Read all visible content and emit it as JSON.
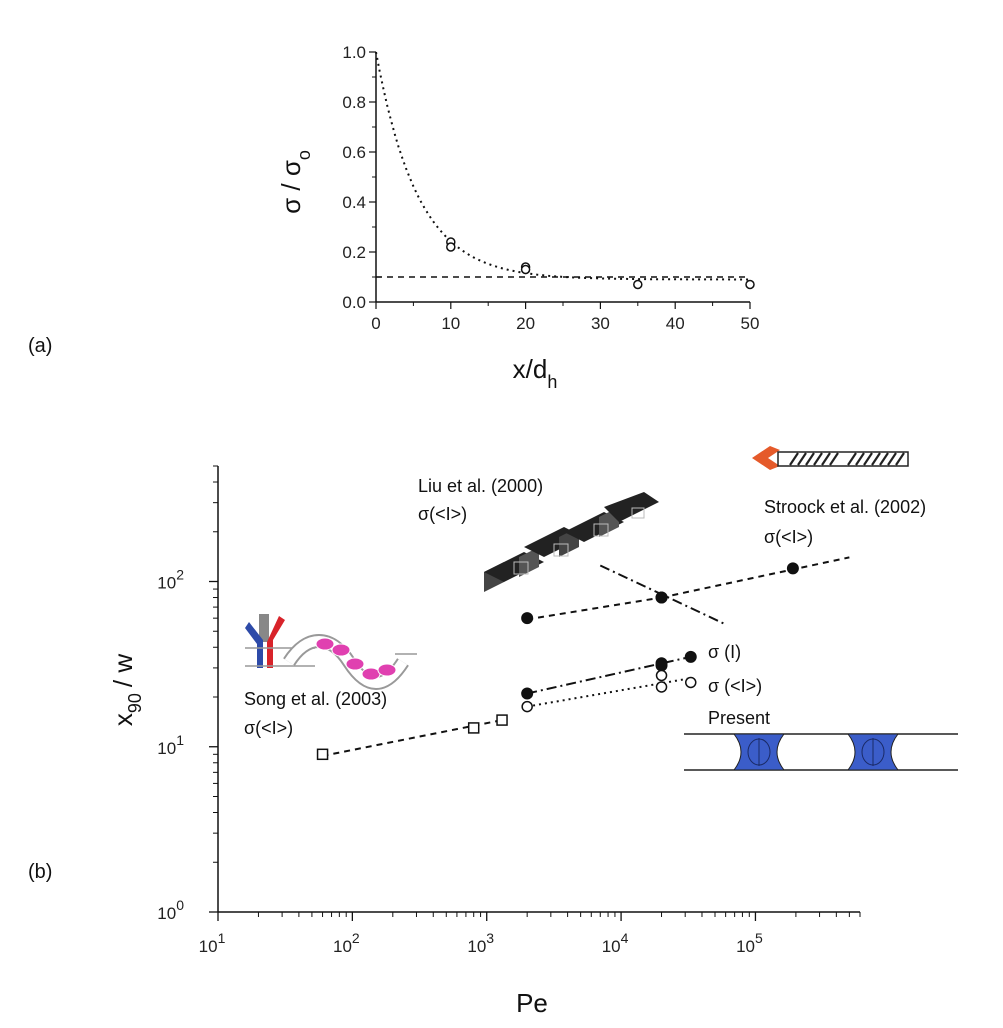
{
  "chart_data": [
    {
      "type": "scatter",
      "panel_label": "(a)",
      "xlabel": "x/d",
      "xlabel_sub": "h",
      "ylabel": "σ / σ",
      "ylabel_sub": "o",
      "xlim": [
        0,
        50
      ],
      "ylim": [
        0,
        1.0
      ],
      "xticks": [
        0,
        10,
        20,
        30,
        40,
        50
      ],
      "yticks": [
        0.0,
        0.2,
        0.4,
        0.6,
        0.8,
        1.0
      ],
      "ytick_labels": [
        "0.0",
        "0.2",
        "0.4",
        "0.6",
        "0.8",
        "1.0"
      ],
      "points": [
        {
          "x": 10,
          "y": 0.24,
          "marker": "open-circle"
        },
        {
          "x": 10,
          "y": 0.22,
          "marker": "open-circle"
        },
        {
          "x": 20,
          "y": 0.14,
          "marker": "open-circle"
        },
        {
          "x": 20,
          "y": 0.13,
          "marker": "open-circle"
        },
        {
          "x": 35,
          "y": 0.07,
          "marker": "open-circle"
        },
        {
          "x": 50,
          "y": 0.07,
          "marker": "open-circle"
        }
      ],
      "fit_curve": {
        "type": "exponential",
        "y0": 1.0,
        "asymptote": 0.09,
        "decay_length": 5.6,
        "style": "dotted"
      },
      "reference_line": {
        "y": 0.1,
        "style": "dashed"
      }
    },
    {
      "type": "scatter",
      "panel_label": "(b)",
      "xlabel": "Pe",
      "ylabel": "x",
      "ylabel_sub": "90",
      "ylabel_tail": "/ w",
      "xscale": "log",
      "yscale": "log",
      "xlim": [
        10,
        600000
      ],
      "ylim": [
        1,
        500
      ],
      "xtick_exponents": [
        1,
        2,
        3,
        4,
        5
      ],
      "ytick_exponents": [
        0,
        1,
        2
      ],
      "tick_base": "10",
      "series": [
        {
          "name": "Song et al. (2003)",
          "subtitle": "σ(<I>)",
          "marker": "open-square",
          "style": "dashed",
          "x": [
            60,
            800,
            1300
          ],
          "y": [
            9,
            13,
            14.5
          ],
          "fit": {
            "x": [
              60,
              1300
            ],
            "y": [
              8.8,
              14.5
            ]
          }
        },
        {
          "name": "Liu et al. (2000)",
          "subtitle": "σ(<I>)",
          "marker": "filled-circle",
          "style": "dashed",
          "x": [
            2000,
            20000
          ],
          "y": [
            60,
            80
          ],
          "fit": {
            "x": [
              2000,
              20000
            ],
            "y": [
              59,
              80
            ]
          }
        },
        {
          "name": "Stroock et al. (2002)",
          "subtitle": "σ(<I>)",
          "marker": "filled-circle",
          "style": "dashed",
          "x": [
            20000,
            190000
          ],
          "y": [
            80,
            120
          ],
          "fit": {
            "x": [
              20000,
              500000
            ],
            "y": [
              80,
              140
            ]
          }
        },
        {
          "name": "σ (I)",
          "marker": "filled-circle",
          "style": "dash-dot",
          "x": [
            2000,
            20000,
            20000,
            33000
          ],
          "y": [
            21,
            32,
            31,
            35
          ],
          "fit": {
            "x": [
              2000,
              33000
            ],
            "y": [
              21,
              35
            ]
          }
        },
        {
          "name": "σ (<I>)",
          "marker": "open-circle",
          "style": "dotted",
          "x": [
            2000,
            20000,
            20000,
            33000
          ],
          "y": [
            17.5,
            27,
            23,
            24.5
          ],
          "fit": {
            "x": [
              2000,
              33000
            ],
            "y": [
              17.5,
              26
            ]
          }
        }
      ],
      "crossing_line": {
        "x": [
          7000,
          60000
        ],
        "y": [
          125,
          55
        ],
        "style": "dash-dot"
      },
      "present_label": "Present"
    }
  ]
}
